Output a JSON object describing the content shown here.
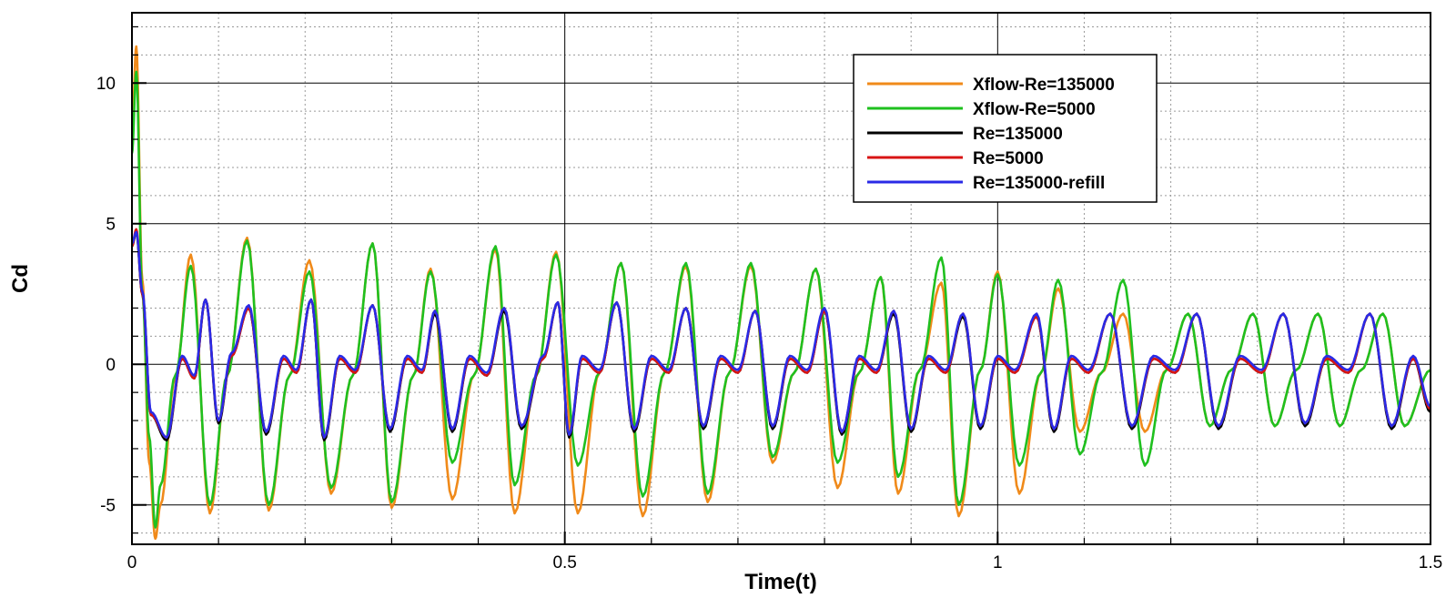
{
  "chart_data": {
    "type": "line",
    "title": "",
    "xlabel": "Time(t)",
    "ylabel": "Cd",
    "xlim": [
      0,
      1.5
    ],
    "ylim": [
      -6.4,
      12.5
    ],
    "xticks": [
      0,
      0.5,
      1,
      1.5
    ],
    "xtick_labels": [
      "0",
      "0.5",
      "1",
      "1.5"
    ],
    "yticks": [
      -5,
      0,
      5,
      10
    ],
    "ytick_labels": [
      "-5",
      "0",
      "5",
      "10"
    ],
    "grid": true,
    "legend_position": "top-right",
    "series": [
      {
        "name": "Xflow-Re=135000",
        "color": "#f08a1a",
        "x": [
          0,
          0.005,
          0.012,
          0.02,
          0.027,
          0.033,
          0.05,
          0.068,
          0.09,
          0.11,
          0.133,
          0.158,
          0.182,
          0.205,
          0.23,
          0.255,
          0.278,
          0.3,
          0.325,
          0.345,
          0.37,
          0.395,
          0.42,
          0.442,
          0.467,
          0.49,
          0.515,
          0.54,
          0.565,
          0.59,
          0.615,
          0.64,
          0.665,
          0.69,
          0.715,
          0.74,
          0.765,
          0.79,
          0.815,
          0.84,
          0.865,
          0.885,
          0.91,
          0.935,
          0.955,
          0.98,
          1.0,
          1.025,
          1.05,
          1.07,
          1.095,
          1.12,
          1.145,
          1.17,
          1.195,
          1.22,
          1.245,
          1.27,
          1.295,
          1.32,
          1.345,
          1.37,
          1.395,
          1.42,
          1.445,
          1.47,
          1.5
        ],
        "y": [
          8.2,
          11.3,
          3.0,
          -3.5,
          -6.2,
          -5.0,
          -0.5,
          3.9,
          -5.3,
          -0.4,
          4.5,
          -5.2,
          -0.4,
          3.7,
          -4.6,
          -0.4,
          4.3,
          -5.1,
          -0.4,
          3.4,
          -4.8,
          -0.4,
          4.1,
          -5.3,
          -0.4,
          4.0,
          -5.3,
          -0.3,
          3.6,
          -5.4,
          -0.3,
          3.5,
          -4.9,
          -0.3,
          3.5,
          -3.5,
          -0.3,
          3.4,
          -4.4,
          -0.3,
          3.1,
          -4.6,
          -0.2,
          2.9,
          -5.4,
          -0.2,
          3.3,
          -4.6,
          -0.3,
          2.7,
          -2.4,
          -0.3,
          1.8,
          -2.4,
          -0.2,
          1.8,
          -2.2,
          -0.2,
          1.8,
          -2.2,
          -0.2,
          1.8,
          -2.2,
          -0.2,
          1.8,
          -2.2,
          -0.2
        ]
      },
      {
        "name": "Xflow-Re=5000",
        "color": "#1fc01f",
        "x": [
          0,
          0.005,
          0.012,
          0.02,
          0.027,
          0.033,
          0.05,
          0.068,
          0.09,
          0.11,
          0.133,
          0.158,
          0.182,
          0.205,
          0.23,
          0.255,
          0.278,
          0.3,
          0.325,
          0.345,
          0.37,
          0.395,
          0.42,
          0.442,
          0.467,
          0.49,
          0.515,
          0.54,
          0.565,
          0.59,
          0.615,
          0.64,
          0.665,
          0.69,
          0.715,
          0.74,
          0.765,
          0.79,
          0.815,
          0.84,
          0.865,
          0.885,
          0.91,
          0.935,
          0.955,
          0.98,
          1.0,
          1.025,
          1.05,
          1.07,
          1.095,
          1.12,
          1.145,
          1.17,
          1.195,
          1.22,
          1.245,
          1.27,
          1.295,
          1.32,
          1.345,
          1.37,
          1.395,
          1.42,
          1.445,
          1.47,
          1.5
        ],
        "y": [
          7.5,
          10.4,
          2.5,
          -2.6,
          -5.8,
          -4.3,
          -0.4,
          3.5,
          -5.0,
          -0.4,
          4.4,
          -5.0,
          -0.4,
          3.3,
          -4.4,
          -0.4,
          4.3,
          -4.9,
          -0.4,
          3.3,
          -3.5,
          -0.4,
          4.2,
          -4.3,
          -0.4,
          3.9,
          -3.6,
          -0.3,
          3.6,
          -4.7,
          -0.3,
          3.6,
          -4.6,
          -0.3,
          3.6,
          -3.3,
          -0.3,
          3.4,
          -3.5,
          -0.3,
          3.1,
          -4.0,
          -0.2,
          3.8,
          -5.0,
          -0.2,
          3.2,
          -3.6,
          -0.3,
          3.0,
          -3.2,
          -0.3,
          3.0,
          -3.6,
          -0.2,
          1.8,
          -2.2,
          -0.2,
          1.8,
          -2.2,
          -0.2,
          1.8,
          -2.2,
          -0.2,
          1.8,
          -2.2,
          -0.2
        ]
      },
      {
        "name": "Re=135000",
        "color": "#000000",
        "x": [
          0,
          0.005,
          0.012,
          0.022,
          0.04,
          0.058,
          0.072,
          0.085,
          0.1,
          0.115,
          0.135,
          0.155,
          0.175,
          0.19,
          0.207,
          0.222,
          0.24,
          0.258,
          0.278,
          0.298,
          0.318,
          0.335,
          0.35,
          0.37,
          0.39,
          0.41,
          0.43,
          0.45,
          0.475,
          0.492,
          0.505,
          0.52,
          0.54,
          0.56,
          0.58,
          0.6,
          0.62,
          0.64,
          0.66,
          0.68,
          0.7,
          0.72,
          0.74,
          0.76,
          0.78,
          0.8,
          0.82,
          0.84,
          0.86,
          0.88,
          0.9,
          0.92,
          0.94,
          0.96,
          0.98,
          1.0,
          1.02,
          1.045,
          1.065,
          1.085,
          1.105,
          1.13,
          1.155,
          1.18,
          1.205,
          1.23,
          1.255,
          1.28,
          1.305,
          1.33,
          1.355,
          1.38,
          1.405,
          1.43,
          1.455,
          1.48,
          1.5
        ],
        "y": [
          4.2,
          4.7,
          2.5,
          -1.8,
          -2.7,
          0.2,
          -0.5,
          2.3,
          -2.1,
          0.3,
          2.0,
          -2.5,
          0.2,
          -0.3,
          2.3,
          -2.7,
          0.2,
          -0.3,
          2.1,
          -2.4,
          0.2,
          -0.3,
          1.8,
          -2.4,
          0.2,
          -0.4,
          1.9,
          -2.3,
          0.2,
          2.2,
          -2.6,
          0.2,
          -0.3,
          2.2,
          -2.4,
          0.2,
          -0.3,
          2.0,
          -2.3,
          0.2,
          -0.3,
          1.9,
          -2.3,
          0.2,
          -0.3,
          1.9,
          -2.5,
          0.2,
          -0.3,
          1.8,
          -2.4,
          0.2,
          -0.3,
          1.7,
          -2.3,
          0.2,
          -0.3,
          1.7,
          -2.4,
          0.2,
          -0.3,
          1.8,
          -2.3,
          0.2,
          -0.3,
          1.8,
          -2.3,
          0.2,
          -0.3,
          1.8,
          -2.2,
          0.2,
          -0.3,
          1.8,
          -2.3,
          0.2,
          -1.7
        ]
      },
      {
        "name": "Re=5000",
        "color": "#d81414",
        "x": [
          0,
          0.005,
          0.012,
          0.022,
          0.04,
          0.058,
          0.072,
          0.085,
          0.1,
          0.115,
          0.135,
          0.155,
          0.175,
          0.19,
          0.207,
          0.222,
          0.24,
          0.258,
          0.278,
          0.298,
          0.318,
          0.335,
          0.35,
          0.37,
          0.39,
          0.41,
          0.43,
          0.45,
          0.475,
          0.492,
          0.505,
          0.52,
          0.54,
          0.56,
          0.58,
          0.6,
          0.62,
          0.64,
          0.66,
          0.68,
          0.7,
          0.72,
          0.74,
          0.76,
          0.78,
          0.8,
          0.82,
          0.84,
          0.86,
          0.88,
          0.9,
          0.92,
          0.94,
          0.96,
          0.98,
          1.0,
          1.02,
          1.045,
          1.065,
          1.085,
          1.105,
          1.13,
          1.155,
          1.18,
          1.205,
          1.23,
          1.255,
          1.28,
          1.305,
          1.33,
          1.355,
          1.38,
          1.405,
          1.43,
          1.455,
          1.48,
          1.5
        ],
        "y": [
          4.2,
          4.8,
          2.5,
          -1.8,
          -2.6,
          0.2,
          -0.5,
          2.3,
          -2.0,
          0.3,
          2.0,
          -2.4,
          0.2,
          -0.3,
          2.3,
          -2.6,
          0.2,
          -0.3,
          2.1,
          -2.3,
          0.2,
          -0.3,
          1.9,
          -2.3,
          0.2,
          -0.4,
          2.0,
          -2.2,
          0.2,
          2.2,
          -2.5,
          0.2,
          -0.3,
          2.2,
          -2.3,
          0.2,
          -0.3,
          2.0,
          -2.2,
          0.2,
          -0.3,
          1.9,
          -2.2,
          0.2,
          -0.3,
          1.9,
          -2.4,
          0.2,
          -0.3,
          1.9,
          -2.3,
          0.2,
          -0.3,
          1.8,
          -2.2,
          0.2,
          -0.3,
          1.7,
          -2.3,
          0.2,
          -0.3,
          1.8,
          -2.2,
          0.2,
          -0.3,
          1.8,
          -2.2,
          0.2,
          -0.3,
          1.8,
          -2.1,
          0.2,
          -0.3,
          1.8,
          -2.2,
          0.2,
          -1.6
        ]
      },
      {
        "name": "Re=135000-refill",
        "color": "#2a2ae6",
        "x": [
          0,
          0.005,
          0.012,
          0.022,
          0.04,
          0.058,
          0.072,
          0.085,
          0.1,
          0.115,
          0.135,
          0.155,
          0.175,
          0.19,
          0.207,
          0.222,
          0.24,
          0.258,
          0.278,
          0.298,
          0.318,
          0.335,
          0.35,
          0.37,
          0.39,
          0.41,
          0.43,
          0.45,
          0.475,
          0.492,
          0.505,
          0.52,
          0.54,
          0.56,
          0.58,
          0.6,
          0.62,
          0.64,
          0.66,
          0.68,
          0.7,
          0.72,
          0.74,
          0.76,
          0.78,
          0.8,
          0.82,
          0.84,
          0.86,
          0.88,
          0.9,
          0.92,
          0.94,
          0.96,
          0.98,
          1.0,
          1.02,
          1.045,
          1.065,
          1.085,
          1.105,
          1.13,
          1.155,
          1.18,
          1.205,
          1.23,
          1.255,
          1.28,
          1.305,
          1.33,
          1.355,
          1.38,
          1.405,
          1.43,
          1.455,
          1.48,
          1.5
        ],
        "y": [
          4.3,
          4.7,
          2.6,
          -1.7,
          -2.6,
          0.3,
          -0.4,
          2.3,
          -2.0,
          0.4,
          2.1,
          -2.4,
          0.3,
          -0.2,
          2.3,
          -2.6,
          0.3,
          -0.2,
          2.1,
          -2.3,
          0.3,
          -0.2,
          1.9,
          -2.3,
          0.3,
          -0.3,
          2.0,
          -2.2,
          0.3,
          2.2,
          -2.5,
          0.3,
          -0.2,
          2.2,
          -2.3,
          0.3,
          -0.2,
          2.0,
          -2.2,
          0.3,
          -0.2,
          1.9,
          -2.2,
          0.3,
          -0.2,
          2.0,
          -2.4,
          0.3,
          -0.2,
          1.9,
          -2.3,
          0.3,
          -0.2,
          1.8,
          -2.2,
          0.3,
          -0.2,
          1.8,
          -2.3,
          0.3,
          -0.2,
          1.8,
          -2.2,
          0.3,
          -0.2,
          1.8,
          -2.2,
          0.3,
          -0.2,
          1.8,
          -2.1,
          0.3,
          -0.2,
          1.8,
          -2.2,
          0.3,
          -1.5
        ]
      }
    ]
  }
}
